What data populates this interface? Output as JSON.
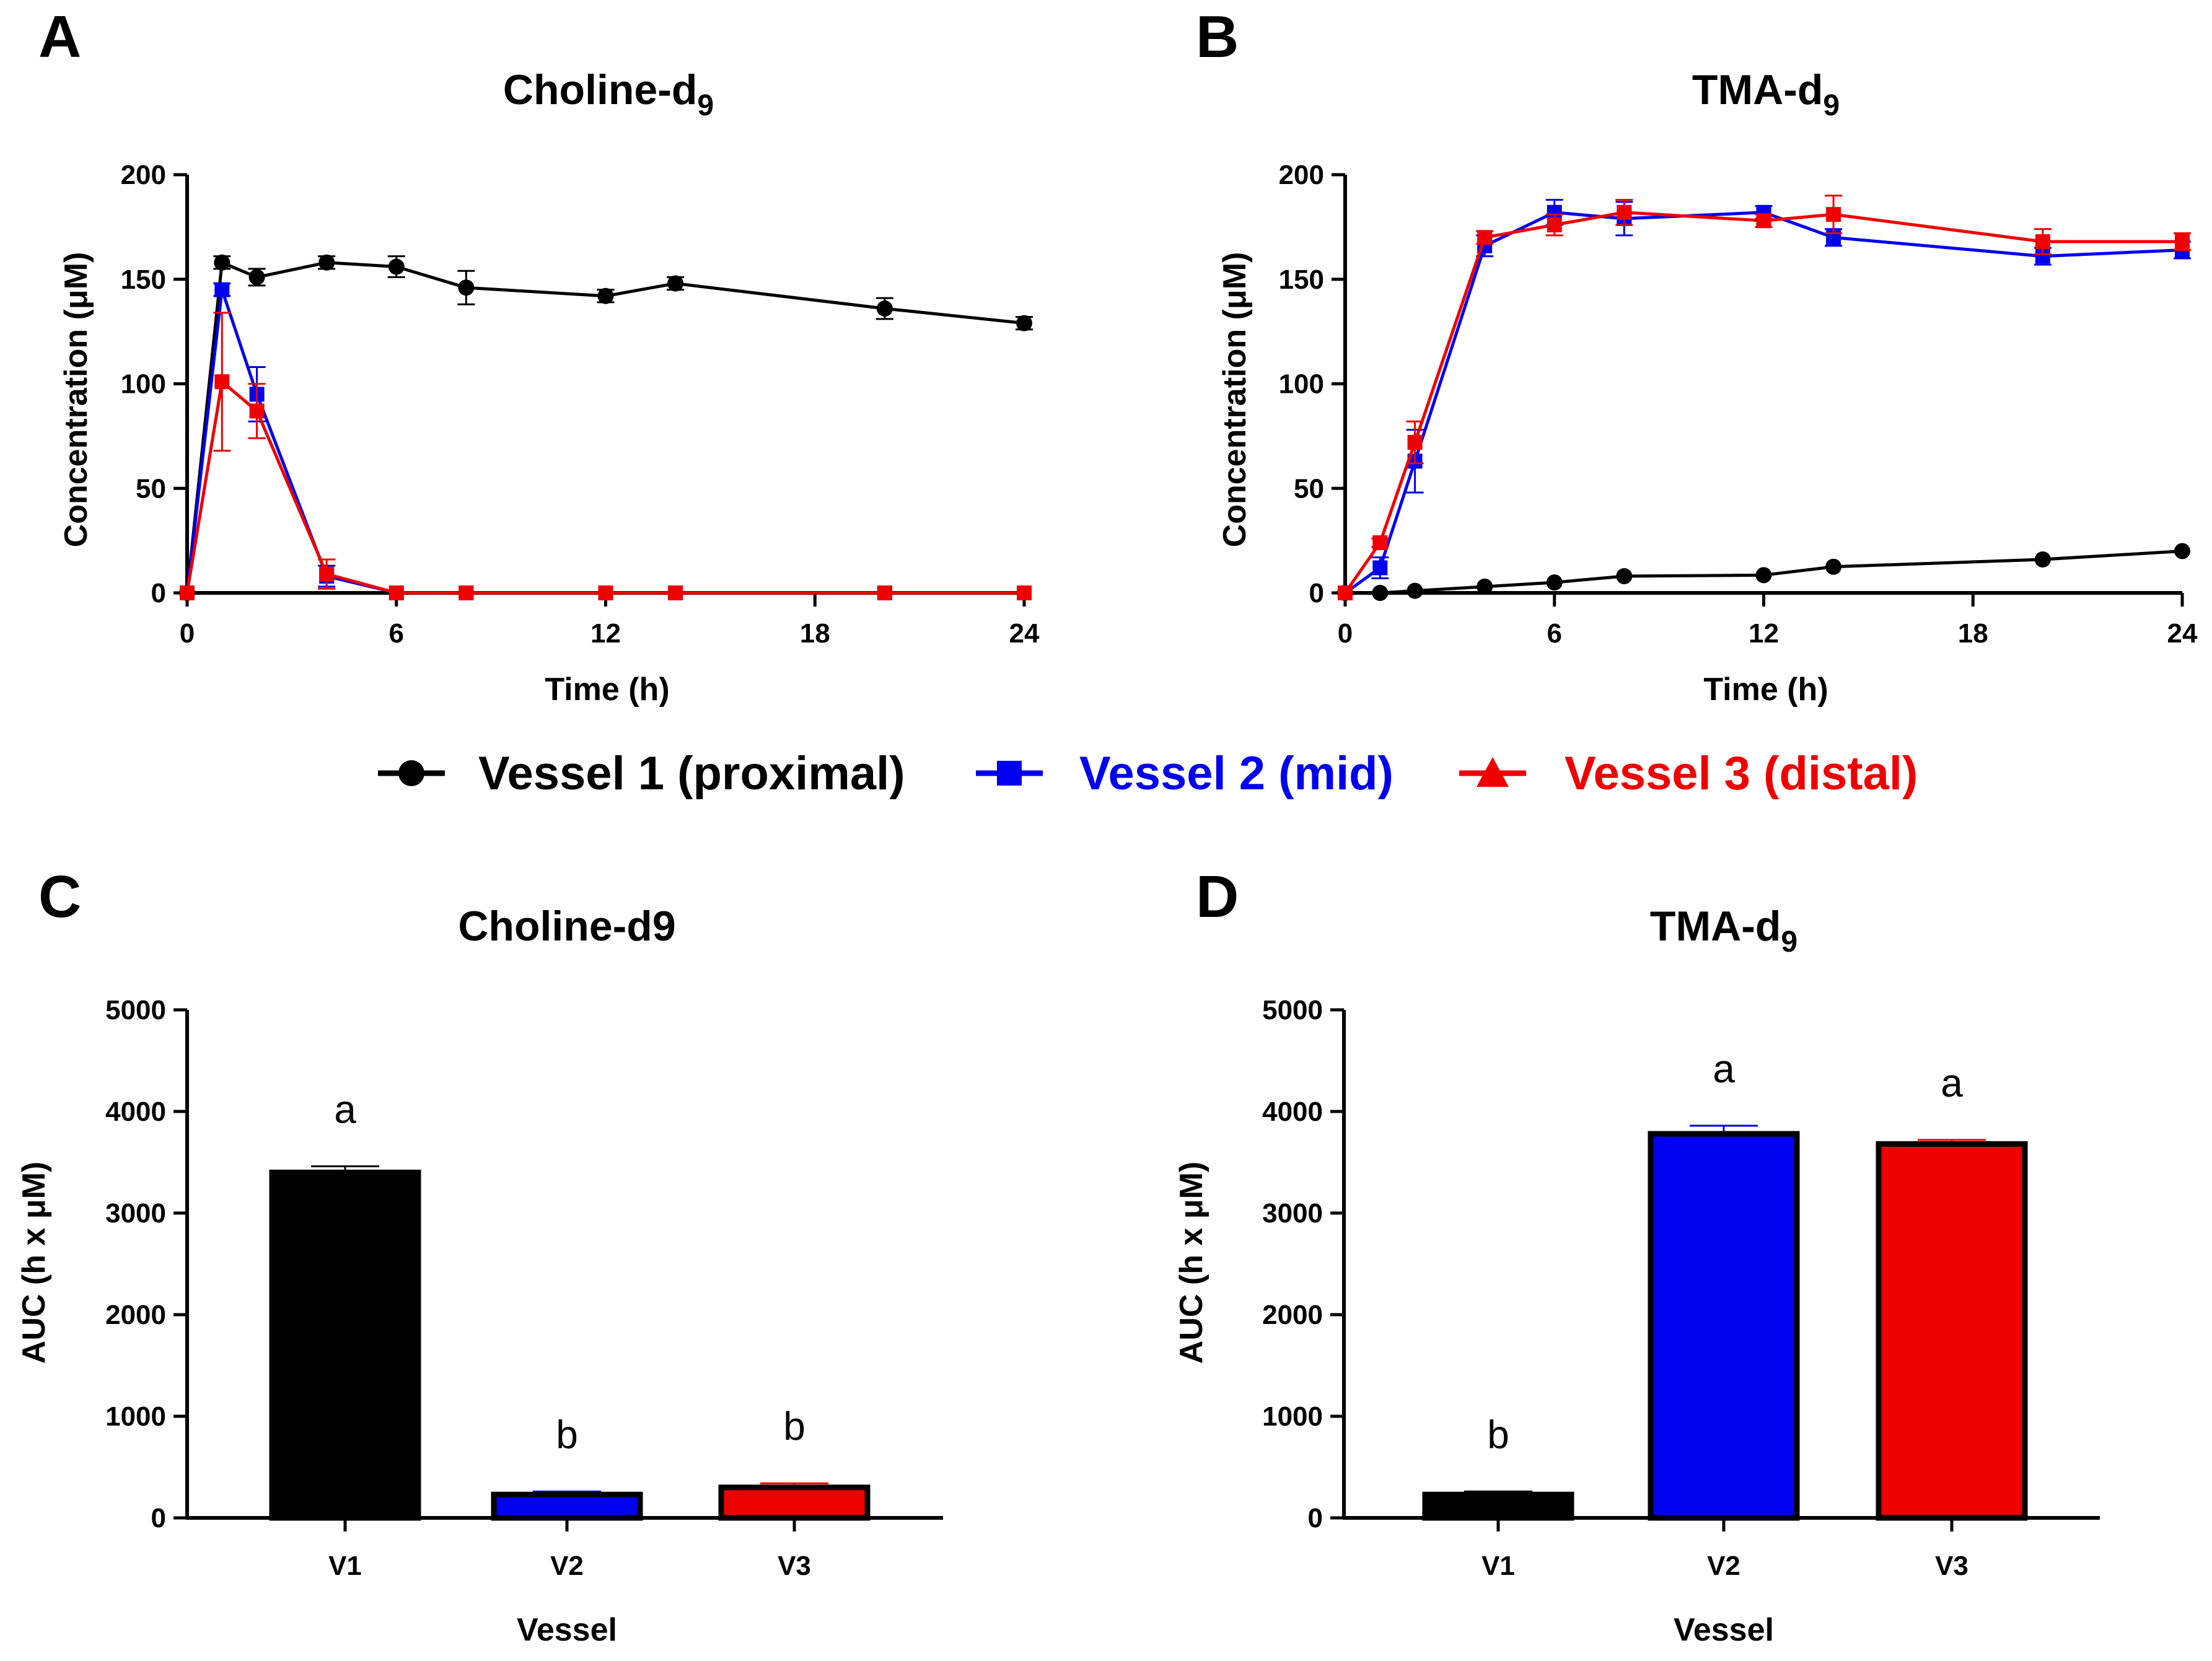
{
  "panels": [
    "A",
    "B",
    "C",
    "D"
  ],
  "legend": [
    {
      "name": "Vessel 1 (proximal)",
      "color": "#000000",
      "marker": "circle"
    },
    {
      "name": "Vessel 2 (mid)",
      "color": "#0000ee",
      "marker": "square"
    },
    {
      "name": "Vessel 3 (distal)",
      "color": "#ee0000",
      "marker": "triangle"
    }
  ],
  "chart_data": [
    {
      "panel": "A",
      "type": "line",
      "title_main": "Choline-d",
      "title_sub": "9",
      "xlabel": "Time (h)",
      "ylabel": "Concentration (μM)",
      "xlim": [
        0,
        24
      ],
      "ylim": [
        0,
        200
      ],
      "xticks": [
        "0",
        "6",
        "12",
        "18",
        "24"
      ],
      "yticks": [
        "0",
        "50",
        "100",
        "150",
        "200"
      ],
      "series": [
        {
          "name": "Vessel 1 (proximal)",
          "color": "#000000",
          "marker": "circle",
          "x": [
            0,
            1,
            2,
            4,
            6,
            8,
            12,
            14,
            20,
            24
          ],
          "y": [
            0,
            158,
            151,
            158,
            156,
            146,
            142,
            148,
            136,
            129
          ],
          "err": [
            0,
            3,
            4,
            3,
            5,
            8,
            3,
            3,
            5,
            3
          ]
        },
        {
          "name": "Vessel 2 (mid)",
          "color": "#0000ee",
          "marker": "square",
          "x": [
            0,
            1,
            2,
            4,
            6,
            8,
            12,
            14,
            20,
            24
          ],
          "y": [
            0,
            145,
            95,
            8,
            0,
            0,
            0,
            0,
            0,
            0
          ],
          "err": [
            0,
            3,
            13,
            5,
            0,
            0,
            0,
            0,
            0,
            0
          ]
        },
        {
          "name": "Vessel 3 (distal)",
          "color": "#ee0000",
          "marker": "triangle",
          "x": [
            0,
            1,
            2,
            4,
            6,
            8,
            12,
            14,
            20,
            24
          ],
          "y": [
            0,
            101,
            87,
            9,
            0,
            0,
            0,
            0,
            0,
            0
          ],
          "err": [
            0,
            33,
            13,
            7,
            0,
            0,
            0,
            0,
            0,
            0
          ]
        }
      ]
    },
    {
      "panel": "B",
      "type": "line",
      "title_main": "TMA-d",
      "title_sub": "9",
      "xlabel": "Time (h)",
      "ylabel": "Concentration (μM)",
      "xlim": [
        0,
        24
      ],
      "ylim": [
        0,
        200
      ],
      "xticks": [
        "0",
        "6",
        "12",
        "18",
        "24"
      ],
      "yticks": [
        "0",
        "50",
        "100",
        "150",
        "200"
      ],
      "series": [
        {
          "name": "Vessel 1 (proximal)",
          "color": "#000000",
          "marker": "circle",
          "x": [
            0,
            1,
            2,
            4,
            6,
            8,
            12,
            14,
            20,
            24
          ],
          "y": [
            0,
            0,
            1,
            3,
            5,
            8,
            8.5,
            12.5,
            16,
            20
          ],
          "err": [
            0,
            0,
            0,
            0,
            0,
            0,
            0,
            0,
            0,
            0
          ]
        },
        {
          "name": "Vessel 2 (mid)",
          "color": "#0000ee",
          "marker": "square",
          "x": [
            0,
            1,
            2,
            4,
            6,
            8,
            12,
            14,
            20,
            24
          ],
          "y": [
            0,
            12,
            63,
            166,
            182,
            179,
            182,
            170,
            161,
            164
          ],
          "err": [
            0,
            5,
            15,
            5,
            6,
            8,
            3,
            4,
            4,
            4
          ]
        },
        {
          "name": "Vessel 3 (distal)",
          "color": "#ee0000",
          "marker": "triangle",
          "x": [
            0,
            1,
            2,
            4,
            6,
            8,
            12,
            14,
            20,
            24
          ],
          "y": [
            0,
            24,
            72,
            170,
            176,
            182,
            178,
            181,
            168,
            168
          ],
          "err": [
            0,
            2,
            10,
            3,
            5,
            6,
            3,
            9,
            6,
            4
          ]
        }
      ]
    },
    {
      "panel": "C",
      "type": "bar",
      "title": "Choline-d9",
      "xlabel": "Vessel",
      "ylabel": "AUC  (h x μM)",
      "ylim": [
        0,
        5000
      ],
      "yticks": [
        "0",
        "1000",
        "2000",
        "3000",
        "4000",
        "5000"
      ],
      "categories": [
        "V1",
        "V2",
        "V3"
      ],
      "values": [
        3400,
        230,
        300
      ],
      "errors": [
        60,
        30,
        40
      ],
      "colors": [
        "#000000",
        "#0000ee",
        "#ee0000"
      ],
      "letters": [
        "a",
        "b",
        "b"
      ]
    },
    {
      "panel": "D",
      "type": "bar",
      "title_main": "TMA-d",
      "title_sub": "9",
      "xlabel": "Vessel",
      "ylabel": "AUC  (h x μM)",
      "ylim": [
        0,
        5000
      ],
      "yticks": [
        "0",
        "1000",
        "2000",
        "3000",
        "4000",
        "5000"
      ],
      "categories": [
        "V1",
        "V2",
        "V3"
      ],
      "values": [
        230,
        3780,
        3680
      ],
      "errors": [
        30,
        80,
        40
      ],
      "colors": [
        "#000000",
        "#0000ee",
        "#ee0000"
      ],
      "letters": [
        "b",
        "a",
        "a"
      ]
    }
  ]
}
